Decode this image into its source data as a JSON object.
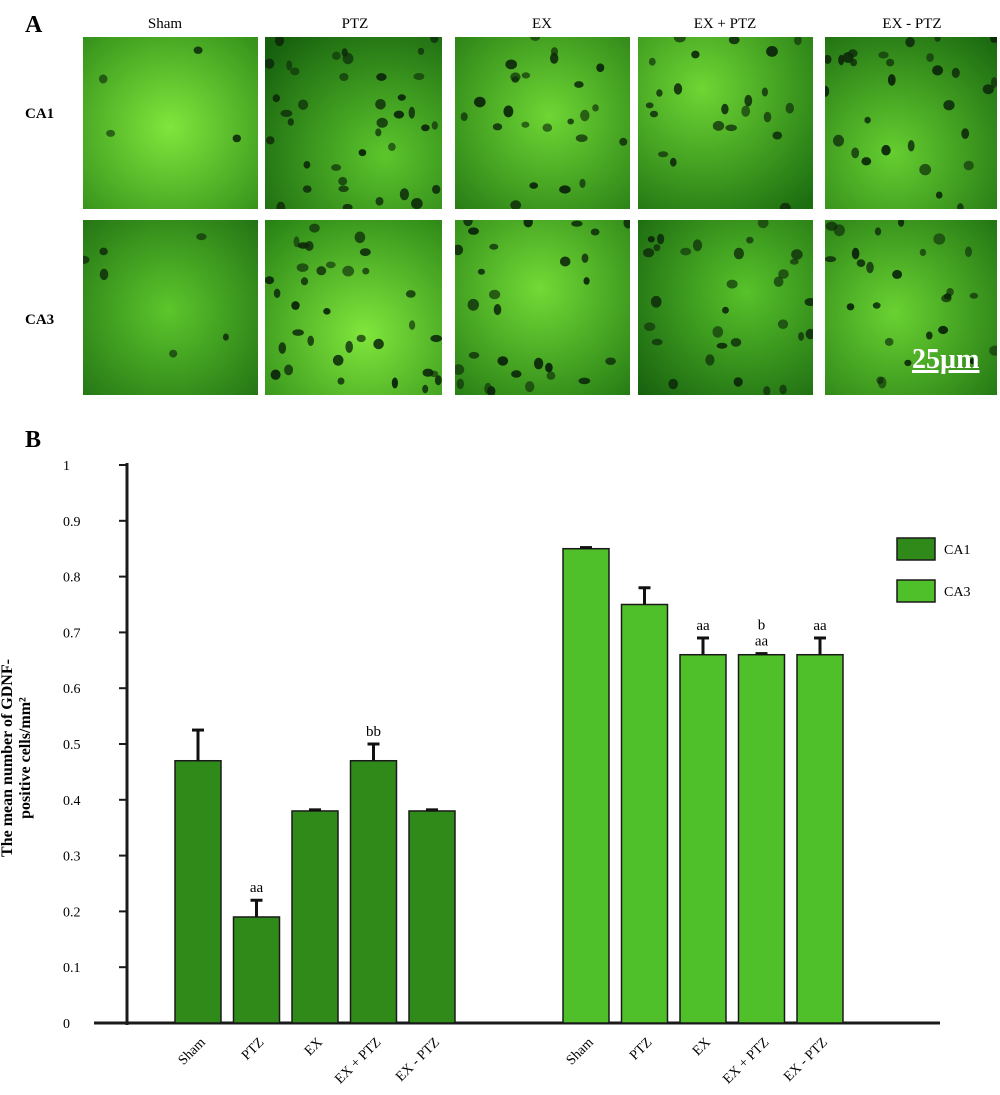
{
  "panels": {
    "a_label": "A",
    "b_label": "B",
    "columns": [
      "Sham",
      "PTZ",
      "EX",
      "EX + PTZ",
      "EX - PTZ"
    ],
    "rows": [
      "CA1",
      "CA3"
    ],
    "scale_bar": "25µm"
  },
  "colors": {
    "ca1": "#2f8a1a",
    "ca3": "#4fbf2a",
    "axis": "#1a1a1a"
  },
  "chart_data": {
    "type": "bar",
    "ylabel_line1": "The mean number of GDNF-",
    "ylabel_line2": "positive cells/mm²",
    "ylim": [
      0,
      1
    ],
    "yticks": [
      0,
      0.1,
      0.2,
      0.3,
      0.4,
      0.5,
      0.6,
      0.7,
      0.8,
      0.9,
      1
    ],
    "ytick_labels": [
      "0",
      "0.1",
      "0.2",
      "0.3",
      "0.4",
      "0.5",
      "0.6",
      "0.7",
      "0.8",
      "0.9",
      "1"
    ],
    "legend_position": "top-right",
    "series": [
      {
        "name": "CA1",
        "categories": [
          "Sham",
          "PTZ",
          "EX",
          "EX + PTZ",
          "EX - PTZ"
        ],
        "values": [
          0.47,
          0.19,
          0.38,
          0.47,
          0.38
        ],
        "errors": [
          0.055,
          0.03,
          0.002,
          0.03,
          0.002
        ],
        "annotations": [
          [],
          [
            "aa"
          ],
          [],
          [
            "bb"
          ],
          []
        ]
      },
      {
        "name": "CA3",
        "categories": [
          "Sham",
          "PTZ",
          "EX",
          "EX + PTZ",
          "EX - PTZ"
        ],
        "values": [
          0.85,
          0.75,
          0.66,
          0.66,
          0.66
        ],
        "errors": [
          0.002,
          0.03,
          0.03,
          0.002,
          0.03
        ],
        "annotations": [
          [],
          [],
          [
            "aa"
          ],
          [
            "b",
            "aa"
          ],
          [
            "aa"
          ]
        ]
      }
    ]
  }
}
